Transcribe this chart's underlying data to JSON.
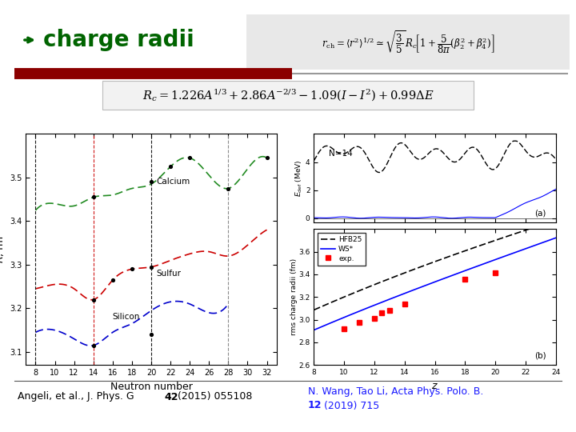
{
  "title": "charge radii",
  "title_color": "#006400",
  "bg_color": "#ffffff",
  "formula1_text": "$r_{\\mathrm{ch}} = \\langle r^2 \\rangle^{1/2} \\simeq \\sqrt{\\dfrac{3}{5}}\\,R_c\\!\\left[1 + \\dfrac{5}{8\\pi}(\\beta_2^2 + \\beta_4^2)\\right]$",
  "formula2_text": "$R_c = 1.226A^{1/3} + 2.86A^{-2/3} - 1.09(I - I^2) + 0.99\\Delta E$",
  "divider_color_left": "#8B0000",
  "divider_color_right": "#999999",
  "ref_right_color": "#1a1aff"
}
